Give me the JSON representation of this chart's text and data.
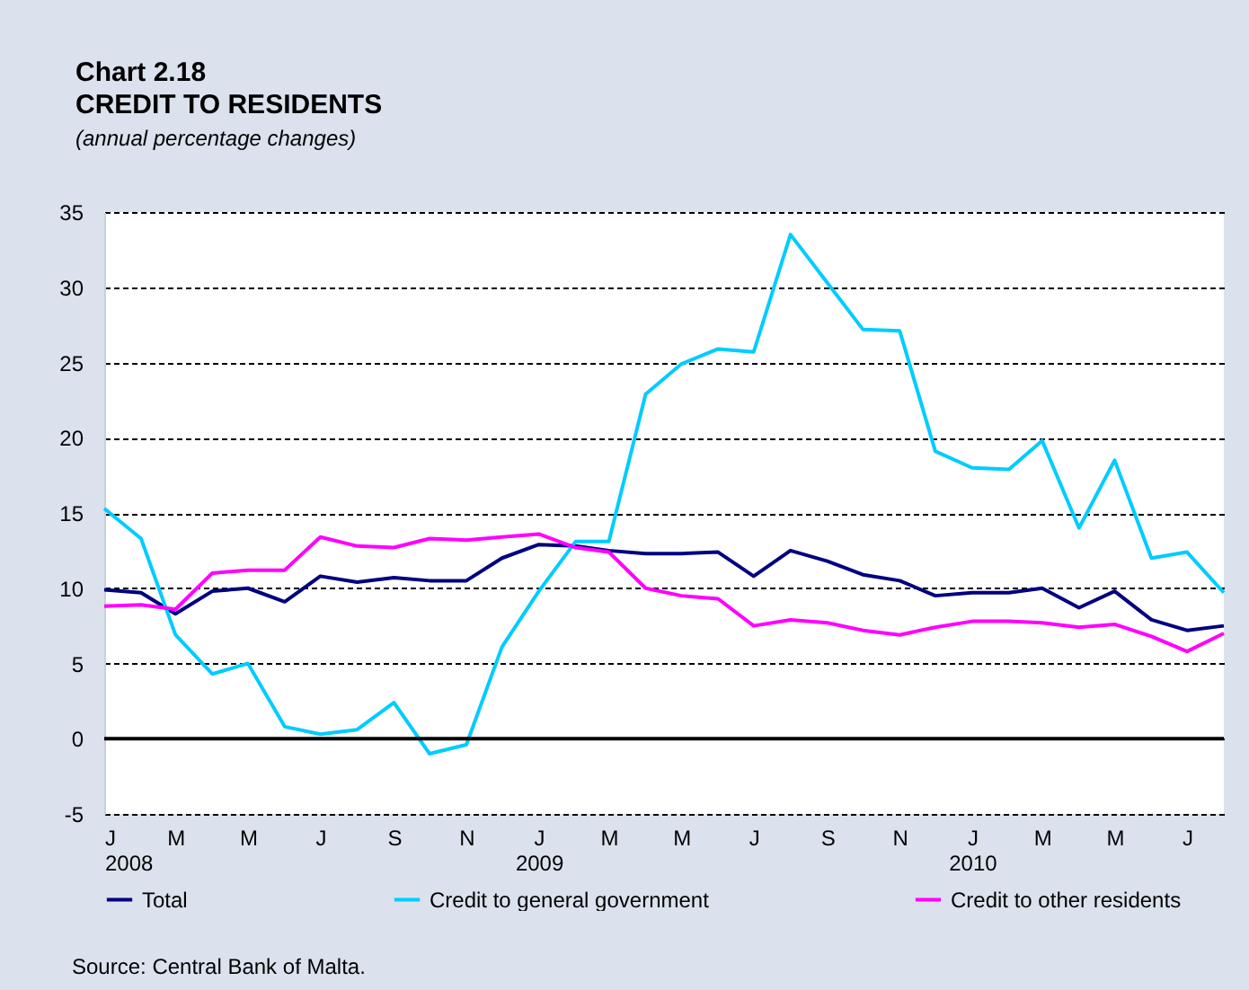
{
  "chart_data": {
    "type": "line",
    "title": "Chart 2.18\nCREDIT TO RESIDENTS",
    "subtitle": "(annual percentage changes)",
    "x": [
      "2008-01",
      "2008-02",
      "2008-03",
      "2008-04",
      "2008-05",
      "2008-06",
      "2008-07",
      "2008-08",
      "2008-09",
      "2008-10",
      "2008-11",
      "2008-12",
      "2009-01",
      "2009-02",
      "2009-03",
      "2009-04",
      "2009-05",
      "2009-06",
      "2009-07",
      "2009-08",
      "2009-09",
      "2009-10",
      "2009-11",
      "2009-12",
      "2010-01",
      "2010-02",
      "2010-03",
      "2010-04",
      "2010-05",
      "2010-06",
      "2010-07",
      "2010-08"
    ],
    "series": [
      {
        "name": "Total",
        "color": "#000080",
        "values": [
          9.9,
          9.7,
          8.3,
          9.8,
          10.0,
          9.1,
          10.8,
          10.4,
          10.7,
          10.5,
          10.5,
          12.0,
          12.9,
          12.8,
          12.5,
          12.3,
          12.3,
          12.4,
          10.8,
          12.5,
          11.8,
          10.9,
          10.5,
          9.5,
          9.7,
          9.7,
          10.0,
          8.7,
          9.8,
          7.9,
          7.2,
          7.5
        ]
      },
      {
        "name": "Credit to general government",
        "color": "#00ccff",
        "values": [
          15.3,
          13.3,
          6.9,
          4.3,
          5.0,
          0.8,
          0.3,
          0.6,
          2.4,
          -1.0,
          -0.4,
          6.1,
          9.8,
          13.1,
          13.1,
          22.9,
          24.9,
          25.9,
          25.7,
          33.5,
          30.3,
          27.2,
          27.1,
          19.1,
          18.0,
          17.9,
          19.8,
          14.0,
          18.5,
          12.0,
          12.4,
          9.7
        ]
      },
      {
        "name": "Credit to other residents",
        "color": "#ff00ff",
        "values": [
          8.8,
          8.9,
          8.6,
          11.0,
          11.2,
          11.2,
          13.4,
          12.8,
          12.7,
          13.3,
          13.2,
          13.4,
          13.6,
          12.7,
          12.4,
          10.0,
          9.5,
          9.3,
          7.5,
          7.9,
          7.7,
          7.2,
          6.9,
          7.4,
          7.8,
          7.8,
          7.7,
          7.4,
          7.6,
          6.8,
          5.8,
          7.0
        ]
      }
    ],
    "xlim": [
      "2008-01",
      "2010-08"
    ],
    "xticks": [
      {
        "value": "2008-01",
        "label": "J\n2008"
      },
      {
        "value": "2008-03",
        "label": "M"
      },
      {
        "value": "2008-05",
        "label": "M"
      },
      {
        "value": "2008-07",
        "label": "J"
      },
      {
        "value": "2008-09",
        "label": "S"
      },
      {
        "value": "2008-11",
        "label": "N"
      },
      {
        "value": "2009-01",
        "label": "J\n2009"
      },
      {
        "value": "2009-03",
        "label": "M"
      },
      {
        "value": "2009-05",
        "label": "M"
      },
      {
        "value": "2009-07",
        "label": "J"
      },
      {
        "value": "2009-09",
        "label": "S"
      },
      {
        "value": "2009-11",
        "label": "N"
      },
      {
        "value": "2010-01",
        "label": "J\n2010"
      },
      {
        "value": "2010-03",
        "label": "M"
      },
      {
        "value": "2010-05",
        "label": "M"
      },
      {
        "value": "2010-07",
        "label": "J"
      }
    ],
    "ylim": [
      -5,
      35
    ],
    "yticks": [
      -5,
      0,
      5,
      10,
      15,
      20,
      25,
      30,
      35
    ],
    "grid": "y",
    "legend": "bottom",
    "line_style": "solid",
    "marker": "none",
    "ref_lines": [
      {
        "axis": "y",
        "value": 0,
        "color": "#000000"
      }
    ],
    "annotations": [
      "Source: Central Bank of Malta."
    ]
  }
}
